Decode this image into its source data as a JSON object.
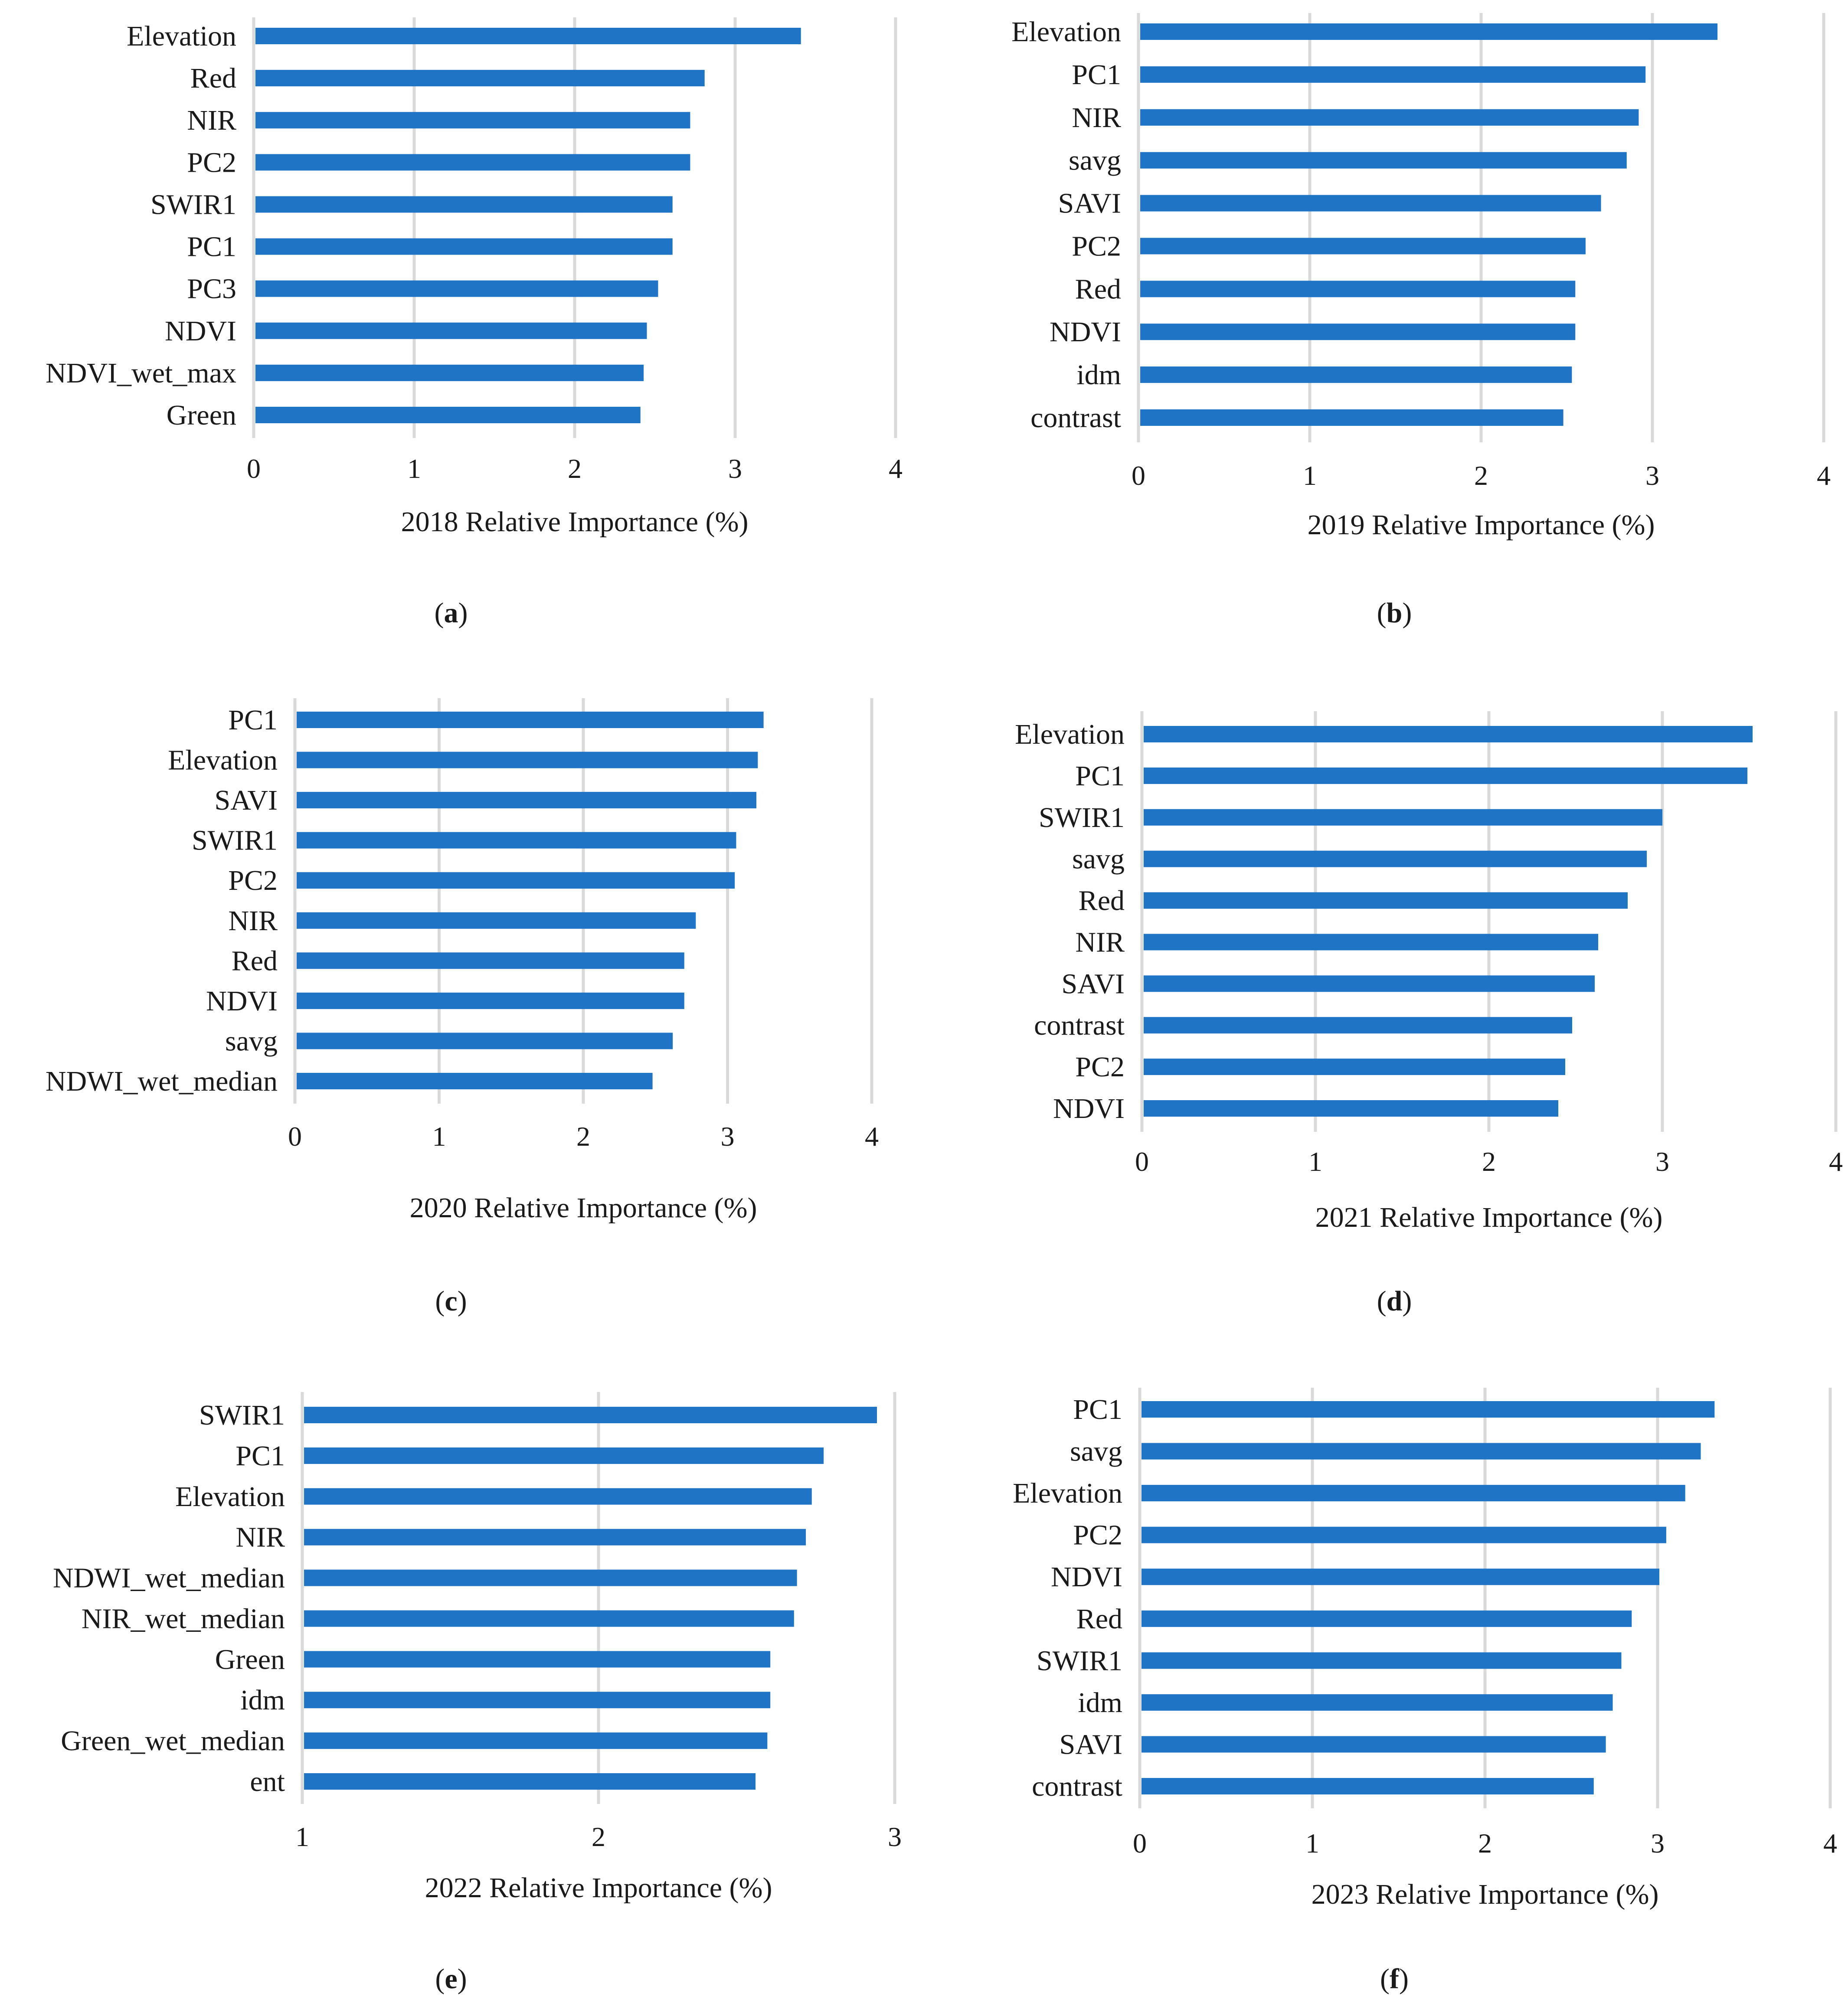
{
  "colors": {
    "bar": "#1f74c6",
    "grid": "#d9d9d9",
    "text": "#1a1a1a"
  },
  "chart_data": [
    {
      "panel": "a",
      "panel_label": "(a)",
      "type": "bar",
      "orientation": "horizontal",
      "xlabel": "2018 Relative Importance (%)",
      "xlim": [
        0,
        4
      ],
      "ticks": [
        0,
        1,
        2,
        3,
        4
      ],
      "categories": [
        "Elevation",
        "Red",
        "NIR",
        "PC2",
        "SWIR1",
        "PC1",
        "PC3",
        "NDVI",
        "NDVI_wet_max",
        "Green"
      ],
      "values": [
        3.41,
        2.81,
        2.72,
        2.72,
        2.61,
        2.61,
        2.52,
        2.45,
        2.43,
        2.41
      ]
    },
    {
      "panel": "b",
      "panel_label": "(b)",
      "type": "bar",
      "orientation": "horizontal",
      "xlabel": "2019 Relative Importance (%)",
      "xlim": [
        0,
        4
      ],
      "ticks": [
        0,
        1,
        2,
        3,
        4
      ],
      "categories": [
        "Elevation",
        "PC1",
        "NIR",
        "savg",
        "SAVI",
        "PC2",
        "Red",
        "NDVI",
        "idm",
        "contrast"
      ],
      "values": [
        3.38,
        2.96,
        2.92,
        2.85,
        2.7,
        2.61,
        2.55,
        2.55,
        2.53,
        2.48
      ]
    },
    {
      "panel": "c",
      "panel_label": "(c)",
      "type": "bar",
      "orientation": "horizontal",
      "xlabel": "2020 Relative Importance (%)",
      "xlim": [
        0,
        4
      ],
      "ticks": [
        0,
        1,
        2,
        3,
        4
      ],
      "categories": [
        "PC1",
        "Elevation",
        "SAVI",
        "SWIR1",
        "PC2",
        "NIR",
        "Red",
        "NDVI",
        "savg",
        "NDWI_wet_median"
      ],
      "values": [
        3.25,
        3.21,
        3.2,
        3.06,
        3.05,
        2.78,
        2.7,
        2.7,
        2.62,
        2.48
      ]
    },
    {
      "panel": "d",
      "panel_label": "(d)",
      "type": "bar",
      "orientation": "horizontal",
      "xlabel": "2021 Relative Importance (%)",
      "xlim": [
        0,
        4
      ],
      "ticks": [
        0,
        1,
        2,
        3,
        4
      ],
      "categories": [
        "Elevation",
        "PC1",
        "SWIR1",
        "savg",
        "Red",
        "NIR",
        "SAVI",
        "contrast",
        "PC2",
        "NDVI"
      ],
      "values": [
        3.52,
        3.49,
        3.0,
        2.91,
        2.8,
        2.63,
        2.61,
        2.48,
        2.44,
        2.4
      ]
    },
    {
      "panel": "e",
      "panel_label": "(e)",
      "type": "bar",
      "orientation": "horizontal",
      "xlabel": "2022 Relative Importance (%)",
      "xlim": [
        1,
        3
      ],
      "ticks": [
        1,
        2,
        3
      ],
      "categories": [
        "SWIR1",
        "PC1",
        "Elevation",
        "NIR",
        "NDWI_wet_median",
        "NIR_wet_median",
        "Green",
        "idm",
        "Green_wet_median",
        "ent"
      ],
      "values": [
        2.94,
        2.76,
        2.72,
        2.7,
        2.67,
        2.66,
        2.58,
        2.58,
        2.57,
        2.53
      ]
    },
    {
      "panel": "f",
      "panel_label": "(f)",
      "type": "bar",
      "orientation": "horizontal",
      "xlabel": "2023 Relative Importance (%)",
      "xlim": [
        0,
        4
      ],
      "ticks": [
        0,
        1,
        2,
        3,
        4
      ],
      "categories": [
        "PC1",
        "savg",
        "Elevation",
        "PC2",
        "NDVI",
        "Red",
        "SWIR1",
        "idm",
        "SAVI",
        "contrast"
      ],
      "values": [
        3.33,
        3.25,
        3.16,
        3.05,
        3.01,
        2.85,
        2.79,
        2.74,
        2.7,
        2.63
      ]
    }
  ]
}
